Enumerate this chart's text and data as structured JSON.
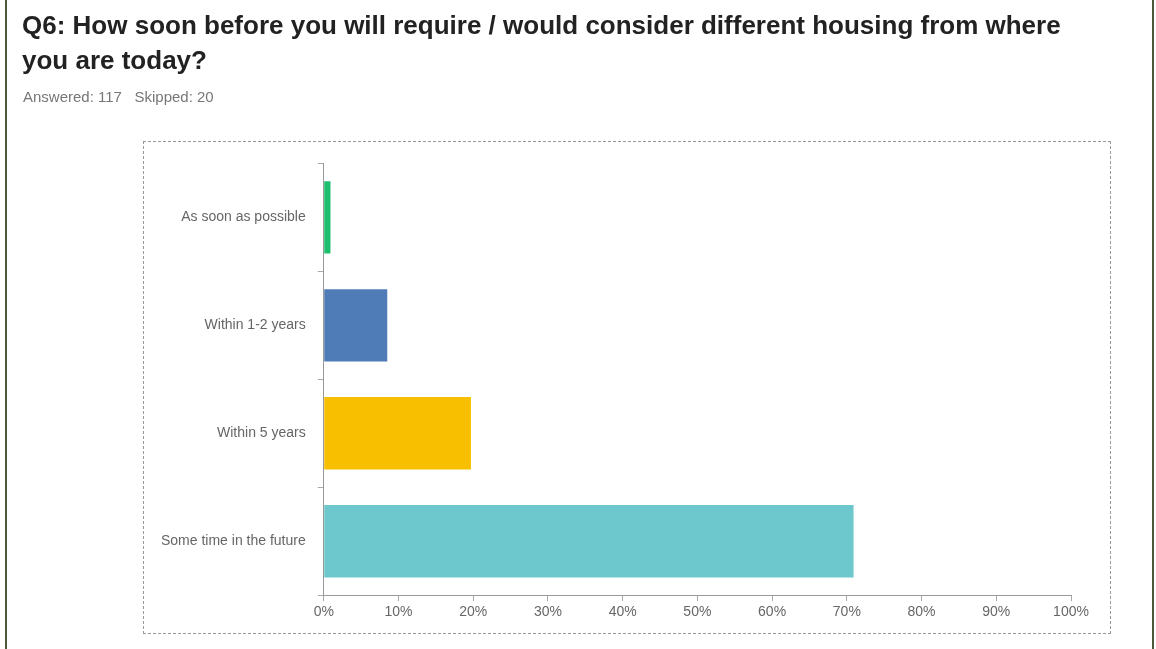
{
  "chart_data": {
    "type": "bar",
    "title": "Q6: How soon before you will require / would consider different housing from where you are today?",
    "subtitle": "Answered: 117   Skipped: 20",
    "categories": [
      "As soon as possible",
      "Within 1-2 years",
      "Within 5 years",
      "Some time in the future"
    ],
    "values": [
      0.9,
      8.5,
      19.7,
      70.9
    ],
    "colors": [
      "#1dbf6f",
      "#4f7cb6",
      "#f8bf00",
      "#6cc8cc"
    ],
    "orientation": "horizontal",
    "xlim": [
      0,
      100
    ],
    "xticks": [
      {
        "value": 0,
        "label": "0%"
      },
      {
        "value": 10,
        "label": "10%"
      },
      {
        "value": 20,
        "label": "20%"
      },
      {
        "value": 30,
        "label": "30%"
      },
      {
        "value": 40,
        "label": "40%"
      },
      {
        "value": 50,
        "label": "50%"
      },
      {
        "value": 60,
        "label": "60%"
      },
      {
        "value": 70,
        "label": "70%"
      },
      {
        "value": 80,
        "label": "80%"
      },
      {
        "value": 90,
        "label": "90%"
      },
      {
        "value": 100,
        "label": "100%"
      }
    ],
    "grid": false
  }
}
